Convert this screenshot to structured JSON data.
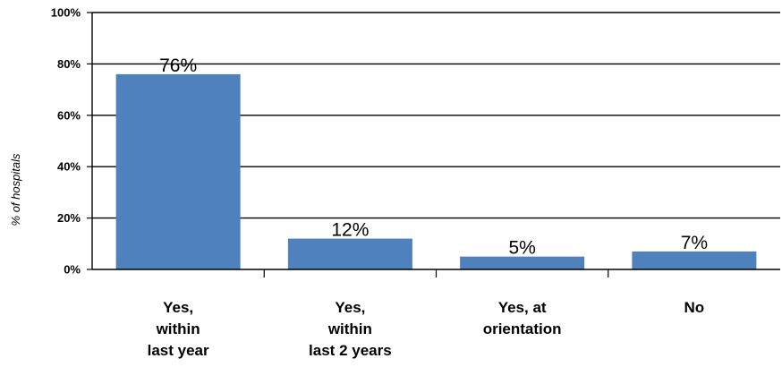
{
  "chart_data": {
    "type": "bar",
    "title": "",
    "xlabel": "",
    "ylabel": "% of hospitals",
    "ylim": [
      0,
      100
    ],
    "yticks": [
      "0%",
      "20%",
      "40%",
      "60%",
      "80%",
      "100%"
    ],
    "grid": true,
    "legend": "none",
    "bar_color": "#4f81bd",
    "categories": [
      [
        "Yes,",
        "within",
        "last year"
      ],
      [
        "Yes,",
        "within",
        "last 2 years"
      ],
      [
        "Yes, at",
        "orientation"
      ],
      [
        "No"
      ]
    ],
    "values": [
      76,
      12,
      5,
      7
    ],
    "data_labels": [
      "76%",
      "12%",
      "5%",
      "7%"
    ]
  }
}
